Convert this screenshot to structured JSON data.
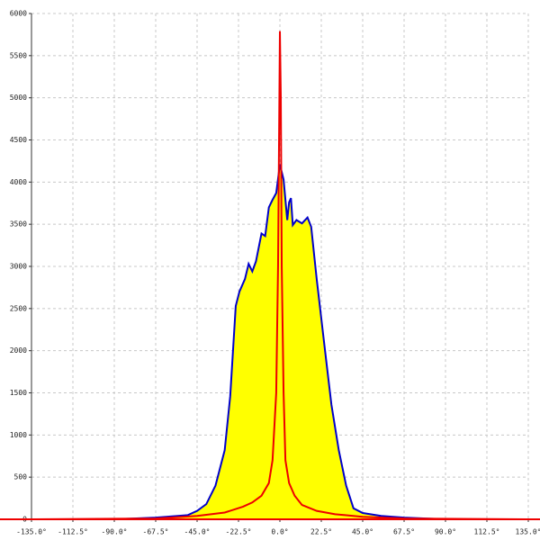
{
  "chart_data": {
    "type": "area",
    "xlim": [
      -135,
      135
    ],
    "ylim": [
      0,
      6000
    ],
    "xticks": [
      {
        "value": -135,
        "label": "-135.0°"
      },
      {
        "value": -112.5,
        "label": "-112.5°"
      },
      {
        "value": -90,
        "label": "-90.0°"
      },
      {
        "value": -67.5,
        "label": "-67.5°"
      },
      {
        "value": -45,
        "label": "-45.0°"
      },
      {
        "value": -22.5,
        "label": "-22.5°"
      },
      {
        "value": 0,
        "label": "0.0°"
      },
      {
        "value": 22.5,
        "label": "22.5°"
      },
      {
        "value": 45,
        "label": "45.0°"
      },
      {
        "value": 67.5,
        "label": "67.5°"
      },
      {
        "value": 90,
        "label": "90.0°"
      },
      {
        "value": 112.5,
        "label": "112.5°"
      },
      {
        "value": 135,
        "label": "135.0°"
      }
    ],
    "yticks": [
      0,
      500,
      1000,
      1500,
      2000,
      2500,
      3000,
      3500,
      4000,
      4500,
      5000,
      5500,
      6000
    ],
    "grid": true,
    "series": [
      {
        "type": "area",
        "color": "#0000cc",
        "fill": "#ffff00",
        "x": [
          -135,
          -90,
          -67.5,
          -50,
          -45,
          -40,
          -35,
          -30,
          -27,
          -24,
          -22,
          -19,
          -17,
          -15,
          -13,
          -10,
          -8,
          -6,
          -4,
          -2,
          0,
          2,
          4,
          5,
          6,
          7,
          9,
          12,
          15,
          17,
          20,
          24,
          28,
          32,
          36,
          40,
          45,
          55,
          67.5,
          90,
          135
        ],
        "values": [
          0,
          0,
          20,
          50,
          100,
          180,
          400,
          820,
          1460,
          2530,
          2700,
          2850,
          3030,
          2940,
          3060,
          3390,
          3360,
          3700,
          3790,
          3870,
          4210,
          4030,
          3550,
          3760,
          3810,
          3490,
          3550,
          3510,
          3580,
          3470,
          2850,
          2100,
          1360,
          820,
          400,
          130,
          75,
          40,
          20,
          0,
          0
        ]
      },
      {
        "type": "line",
        "color": "#ee0000",
        "x": [
          -135,
          -67.5,
          -45,
          -30,
          -20,
          -15,
          -10,
          -6,
          -4,
          -2,
          -1,
          0,
          0.5,
          1,
          2,
          3,
          5,
          8,
          12,
          20,
          30,
          45,
          67.5,
          135
        ],
        "values": [
          0,
          10,
          40,
          80,
          150,
          200,
          280,
          430,
          700,
          1500,
          3000,
          5790,
          5000,
          3000,
          1500,
          700,
          430,
          280,
          170,
          100,
          60,
          30,
          10,
          0
        ]
      }
    ]
  }
}
